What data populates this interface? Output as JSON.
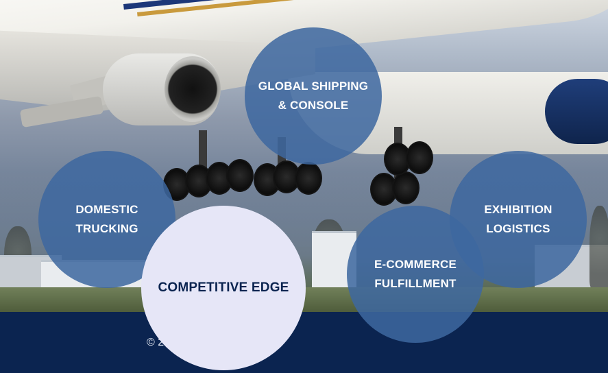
{
  "hero": {
    "image_alt": "Airplane landing over buildings and trees"
  },
  "circles": {
    "global_shipping": {
      "label": "GLOBAL SHIPPING\n& CONSOLE"
    },
    "domestic_trucking": {
      "label": "DOMESTIC\nTRUCKING"
    },
    "exhibition_logistics": {
      "label": "EXHIBITION\nLOGISTICS"
    },
    "ecommerce_fulfillment": {
      "label": "E-COMMERCE\nFULFILLMENT"
    },
    "competitive_edge": {
      "label": "COMPETITIVE EDGE"
    }
  },
  "footer": {
    "copyright": "© 2                    ts reserved."
  },
  "colors": {
    "footer_bg": "#0b2450",
    "circle_blue": "#3e68a0",
    "edge_circle_bg": "#e6e6f7",
    "edge_text": "#0b2450"
  }
}
